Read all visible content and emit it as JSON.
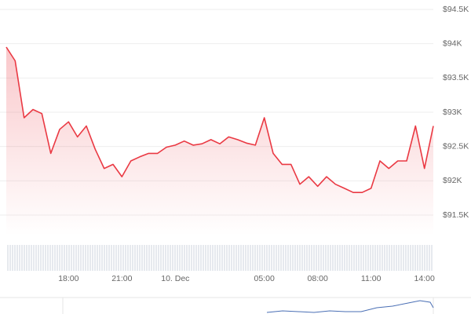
{
  "chart_data": {
    "type": "line",
    "color": "#ea3943",
    "categories": [
      null,
      null,
      null,
      null,
      null,
      null,
      null,
      "18:00",
      null,
      null,
      null,
      null,
      null,
      "21:00",
      null,
      null,
      null,
      null,
      null,
      "10. Dec",
      null,
      null,
      null,
      null,
      null,
      null,
      null,
      null,
      null,
      "05:00",
      null,
      null,
      null,
      null,
      null,
      "08:00",
      null,
      null,
      null,
      null,
      null,
      "11:00",
      null,
      null,
      null,
      null,
      null,
      "14:00",
      null
    ],
    "values": [
      93950,
      93750,
      92920,
      93040,
      92980,
      92400,
      92750,
      92860,
      92640,
      92800,
      92460,
      92180,
      92240,
      92060,
      92290,
      92350,
      92400,
      92400,
      92490,
      92520,
      92580,
      92520,
      92540,
      92600,
      92540,
      92640,
      92600,
      92550,
      92520,
      92920,
      92400,
      92240,
      92240,
      91950,
      92060,
      91920,
      92060,
      91950,
      91890,
      91830,
      91830,
      91890,
      92290,
      92180,
      92290,
      92290,
      92800,
      92180,
      92800
    ],
    "ylim": [
      91500,
      94500
    ],
    "yticks": [
      {
        "value": 91500,
        "label": "$91.5K"
      },
      {
        "value": 92000,
        "label": "$92K"
      },
      {
        "value": 92500,
        "label": "$92.5K"
      },
      {
        "value": 93000,
        "label": "$93K"
      },
      {
        "value": 93500,
        "label": "$93.5K"
      },
      {
        "value": 94000,
        "label": "$94K"
      },
      {
        "value": 94500,
        "label": "$94.5K"
      }
    ],
    "grid": true
  }
}
